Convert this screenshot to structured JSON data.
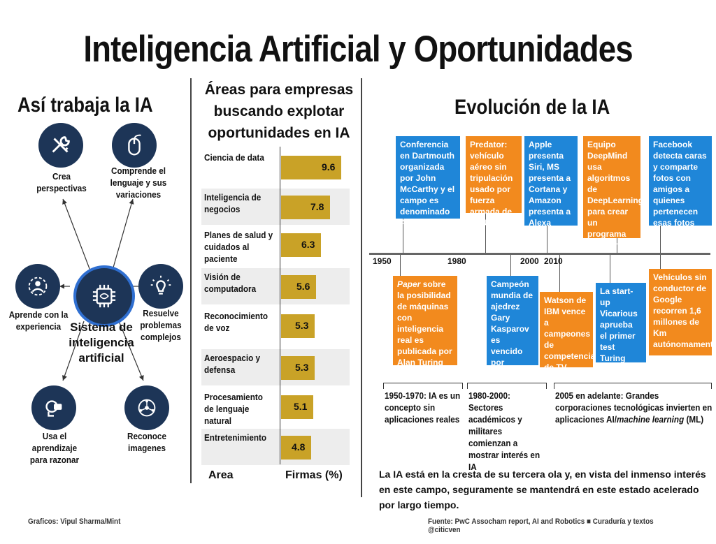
{
  "title": "Inteligencia Artificial y Oportunidades",
  "left": {
    "title": "Así trabaja la IA",
    "center": "Sistema de inteligencia artificial",
    "items": [
      {
        "label": "Crea perspectivas",
        "icon": "tools-icon"
      },
      {
        "label": "Comprende el lenguaje y sus variaciones",
        "icon": "mouse-icon"
      },
      {
        "label": "Aprende con la experiencia",
        "icon": "person-target-icon"
      },
      {
        "label": "Resuelve problemas complejos",
        "icon": "lightbulb-icon"
      },
      {
        "label": "Usa el aprendizaje para razonar",
        "icon": "vr-headset-icon"
      },
      {
        "label": "Reconoce imagenes",
        "icon": "network-icon"
      }
    ]
  },
  "middle": {
    "title": "Áreas para empresas buscando explotar oportunidades en IA",
    "col_area": "Area",
    "col_firms": "Firmas (%)"
  },
  "chart_data": {
    "type": "bar",
    "categories": [
      "Ciencia de data",
      "Inteligencia de negocios",
      "Planes de salud y cuidados al paciente",
      "Visión de computadora",
      "Reconocimiento de voz",
      "Aeroespacio y defensa",
      "Procesamiento de lenguaje natural",
      "Entretenimiento"
    ],
    "values": [
      9.6,
      7.8,
      6.3,
      5.6,
      5.3,
      5.3,
      5.1,
      4.8
    ],
    "value_labels": [
      "9.6",
      "7.8",
      "6.3",
      "5.6",
      "5.3",
      "5.3",
      "5.1",
      "4.8"
    ],
    "xlabel": "Area",
    "ylabel": "Firmas (%)",
    "color": "#c9a227"
  },
  "right": {
    "title": "Evolución de la IA",
    "years": [
      "1950",
      "1980",
      "2000",
      "2010"
    ],
    "top_cards": [
      {
        "text": "Conferencia en Dartmouth organizada por John McCarthy y el campo es denominado AI",
        "color": "blue"
      },
      {
        "text": "Predator: vehículo aéreo sin tripulación usado por fuerza armada de EEUU",
        "color": "orange"
      },
      {
        "text": "Apple presenta Siri, MS presenta a Cortana y Amazon presenta a Alexa",
        "color": "blue"
      },
      {
        "text": "Equipo DeepMind usa algoritmos de DeepLearning para crear un programa que gana en juegos de Atari",
        "color": "orange"
      },
      {
        "text": "Facebook detecta caras y comparte fotos con amigos a quienes pertenecen esas fotos",
        "color": "blue"
      }
    ],
    "bottom_cards": [
      {
        "em": "Paper",
        "text": " sobre la posibilidad de máquinas con inteligencia real es publicada por Alan Turing",
        "color": "orange"
      },
      {
        "text": "Campeón mundia de ajedrez Gary Kasparov es vencido por DeepBlue de IBM",
        "color": "blue"
      },
      {
        "text": "Watson de IBM vence a campeones de competencia de TV Jeopardy",
        "color": "orange"
      },
      {
        "text": "La start-up Vicarious aprueba el primer test Turing CAPTCHA",
        "color": "blue"
      },
      {
        "text": "Vehículos sin conductor de Google recorren 1,6 millones de Km autónomamente",
        "color": "orange"
      }
    ],
    "eras": [
      "1950-1970: IA es un concepto sin aplicaciones reales",
      "1980-2000: Sectores académicos y militares comienzan a mostrar interés en IA",
      "2005 en adelante: Grandes corporaciones tecnológicas invierten en aplicaciones AI/",
      "machine learning",
      " (ML)"
    ],
    "closing": "La IA está en la cresta de su tercera ola y, en vista del inmenso interés en este campo, seguramente se mantendrá en este estado acelerado por largo tiempo."
  },
  "footer": {
    "left": "Graficos: Vipul Sharma/Mint",
    "right": "Fuente: PwC Assocham report, AI and Robotics  ■ Curaduría y textos @citicven"
  }
}
